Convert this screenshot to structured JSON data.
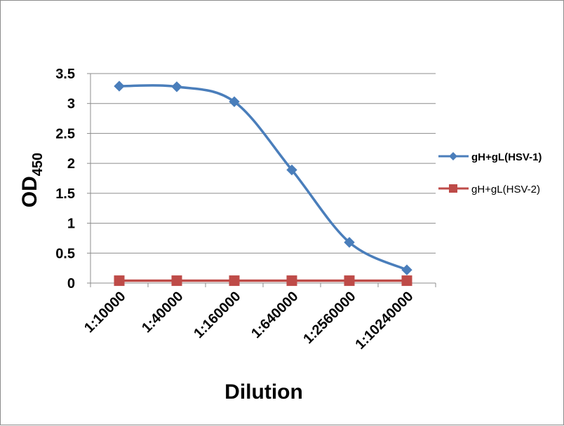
{
  "chart_data": {
    "type": "line",
    "categories": [
      "1:10000",
      "1:40000",
      "1:160000",
      "1:640000",
      "1:2560000",
      "1:10240000"
    ],
    "xlabel": "Dilution",
    "ylabel": {
      "main": "OD",
      "subscript": "450"
    },
    "ylim": [
      0,
      3.5
    ],
    "yticks": [
      "0",
      "0.5",
      "1",
      "1.5",
      "2",
      "2.5",
      "3",
      "3.5"
    ],
    "grid": "horizontal",
    "legend_position": "right",
    "series": [
      {
        "name": "gH+gL(HSV-1)",
        "marker": "diamond",
        "color": "#4a7ebb",
        "values": [
          3.29,
          3.28,
          3.03,
          1.89,
          0.68,
          0.22
        ]
      },
      {
        "name": "gH+gL(HSV-2)",
        "marker": "square",
        "color": "#be4b48",
        "values": [
          0.04,
          0.04,
          0.04,
          0.04,
          0.04,
          0.04
        ]
      }
    ]
  }
}
